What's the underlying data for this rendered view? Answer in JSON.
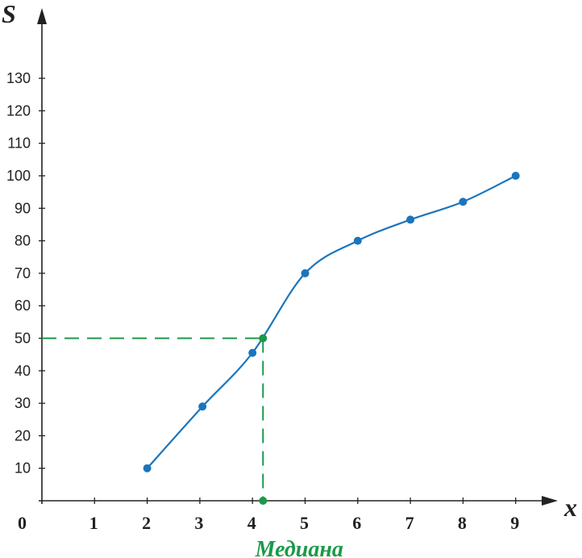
{
  "chart_data": {
    "type": "line",
    "xlabel": "x",
    "ylabel": "S",
    "origin_label": "0",
    "x_ticks": [
      1,
      2,
      3,
      4,
      5,
      6,
      7,
      8,
      9
    ],
    "y_ticks": [
      10,
      20,
      30,
      40,
      50,
      60,
      70,
      80,
      90,
      100,
      110,
      120,
      130
    ],
    "xlim": [
      0,
      10
    ],
    "ylim": [
      0,
      140
    ],
    "series": [
      {
        "x": [
          2,
          3.05,
          4,
          5,
          6,
          7,
          8,
          9
        ],
        "y": [
          10,
          29,
          45.5,
          70,
          80,
          86.5,
          92,
          100
        ],
        "color": "#1b75bc"
      }
    ],
    "median": {
      "label": "Медиана",
      "x": 4.2,
      "y": 50,
      "color": "#1a9a4a"
    },
    "grid": false
  }
}
